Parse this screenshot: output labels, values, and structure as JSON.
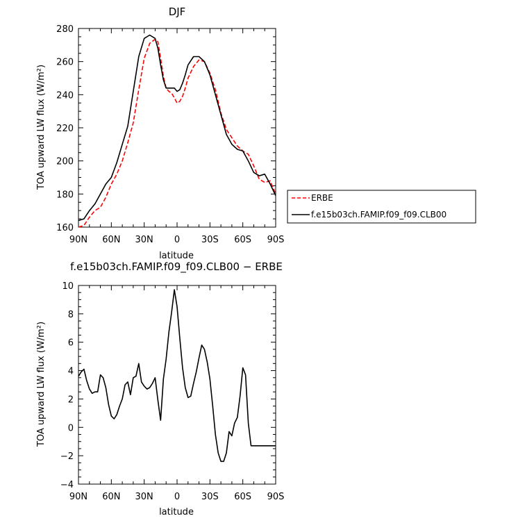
{
  "chart_data": [
    {
      "type": "line",
      "title": "DJF",
      "xlabel": "latitude",
      "ylabel": "TOA upward LW flux (W/m²)",
      "x_tick_labels": [
        "90N",
        "60N",
        "30N",
        "0",
        "30S",
        "60S",
        "90S"
      ],
      "x_tick_values": [
        90,
        60,
        30,
        0,
        -30,
        -60,
        -90
      ],
      "xlim": [
        90,
        -90
      ],
      "ylim": [
        160,
        280
      ],
      "y_ticks": [
        160,
        180,
        200,
        220,
        240,
        260,
        280
      ],
      "legend_position": "right",
      "series": [
        {
          "name": "ERBE",
          "color": "#ff0000",
          "style": "dashed",
          "x": [
            90,
            85,
            80,
            75,
            70,
            65,
            60,
            55,
            50,
            45,
            40,
            35,
            30,
            25,
            20,
            17.5,
            15,
            12.5,
            10,
            7.5,
            5,
            2.5,
            0,
            -2.5,
            -5,
            -7.5,
            -10,
            -15,
            -20,
            -25,
            -30,
            -35,
            -40,
            -45,
            -50,
            -55,
            -60,
            -65,
            -70,
            -75,
            -80,
            -85,
            -90
          ],
          "y": [
            160,
            161,
            166,
            170,
            172,
            178,
            186,
            192,
            200,
            211,
            223,
            243,
            262,
            271,
            273.5,
            272,
            262,
            251,
            244,
            242,
            241,
            238,
            235,
            236,
            239,
            244,
            250,
            257,
            261,
            260,
            253,
            243,
            229,
            219,
            214,
            209,
            206,
            204,
            197,
            189,
            187,
            188,
            180
          ]
        },
        {
          "name": "f.e15b03ch.FAMIP.f09_f09.CLB00",
          "color": "#000000",
          "style": "solid",
          "x": [
            90,
            85,
            80,
            75,
            70,
            65,
            60,
            55,
            50,
            45,
            40,
            35,
            30,
            25,
            20,
            17.5,
            15,
            12.5,
            10,
            7.5,
            5,
            2.5,
            0,
            -2.5,
            -5,
            -7.5,
            -10,
            -15,
            -20,
            -25,
            -30,
            -35,
            -40,
            -45,
            -50,
            -55,
            -60,
            -65,
            -70,
            -75,
            -80,
            -85,
            -90
          ],
          "y": [
            164,
            165,
            170,
            174,
            180,
            186,
            190,
            199,
            210,
            221,
            242,
            263,
            274,
            276,
            274,
            268,
            258,
            249,
            244,
            244,
            244,
            244,
            242,
            243,
            247,
            252,
            258,
            263,
            263,
            260,
            252,
            240,
            228,
            216,
            210,
            207,
            206,
            200,
            193,
            191,
            192,
            186,
            179
          ]
        }
      ]
    },
    {
      "type": "line",
      "title": "f.e15b03ch.FAMIP.f09_f09.CLB00 − ERBE",
      "xlabel": "latitude",
      "ylabel": "TOA upward LW flux (W/m²)",
      "x_tick_labels": [
        "90N",
        "60N",
        "30N",
        "0",
        "30S",
        "60S",
        "90S"
      ],
      "x_tick_values": [
        90,
        60,
        30,
        0,
        -30,
        -60,
        -90
      ],
      "xlim": [
        90,
        -90
      ],
      "ylim": [
        -4,
        10
      ],
      "y_ticks": [
        -4,
        -2,
        0,
        2,
        4,
        6,
        8,
        10
      ],
      "series": [
        {
          "name": "",
          "color": "#000000",
          "style": "solid",
          "x": [
            90,
            87.5,
            85,
            82.5,
            80,
            77.5,
            75,
            72.5,
            70,
            67.5,
            65,
            62.5,
            60,
            57.5,
            55,
            52.5,
            50,
            47.5,
            45,
            42.5,
            40,
            37.5,
            35,
            32.5,
            30,
            27.5,
            25,
            22.5,
            20,
            17.5,
            15,
            12.5,
            10,
            7.5,
            5,
            2.5,
            0,
            -2.5,
            -5,
            -7.5,
            -10,
            -12.5,
            -15,
            -17.5,
            -20,
            -22.5,
            -25,
            -27.5,
            -30,
            -32.5,
            -35,
            -37.5,
            -40,
            -42.5,
            -45,
            -47.5,
            -50,
            -52.5,
            -55,
            -57.5,
            -60,
            -62.5,
            -65,
            -67.5,
            -70,
            -72.5,
            -75,
            -77.5,
            -80,
            -82.5,
            -85,
            -87.5,
            -90
          ],
          "y": [
            3.6,
            3.9,
            4.1,
            3.3,
            2.7,
            2.4,
            2.5,
            2.5,
            3.7,
            3.5,
            2.8,
            1.6,
            0.8,
            0.6,
            0.9,
            1.5,
            2.0,
            3.0,
            3.2,
            2.3,
            3.5,
            3.6,
            4.5,
            3.2,
            2.9,
            2.7,
            2.8,
            3.1,
            3.5,
            1.9,
            0.5,
            3.4,
            4.8,
            6.7,
            8.1,
            9.7,
            8.5,
            6.3,
            4.2,
            2.8,
            2.1,
            2.2,
            3.1,
            3.9,
            4.9,
            5.8,
            5.5,
            4.6,
            3.4,
            1.5,
            -0.5,
            -1.8,
            -2.4,
            -2.4,
            -1.8,
            -0.3,
            -0.6,
            0.3,
            0.7,
            2.2,
            4.2,
            3.7,
            0.3,
            -1.3,
            -1.3,
            -1.3,
            -1.3,
            -1.3,
            -1.3,
            -1.3,
            -1.3,
            -1.3,
            -1.3
          ]
        }
      ]
    }
  ]
}
